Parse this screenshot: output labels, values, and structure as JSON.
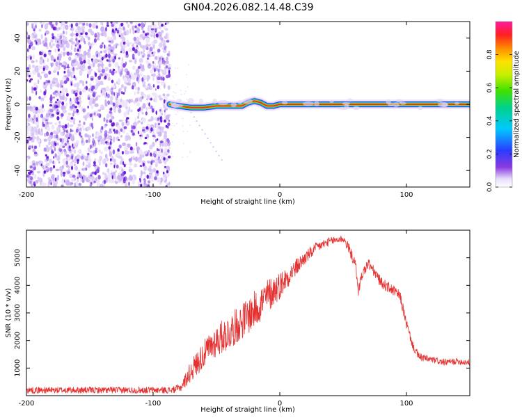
{
  "title": "GN04.2026.082.14.48.C39",
  "colors": {
    "snr_line": "#e53030",
    "ridge_core": "#e83030",
    "noise_dark": "#6a1fd6",
    "noise_light": "#d9c8f5"
  },
  "chart_data": [
    {
      "type": "heatmap",
      "name": "spectrogram",
      "xlabel": "Height of straight line (km)",
      "ylabel": "Frequency (Hz)",
      "xlim": [
        -200,
        150
      ],
      "ylim": [
        -50,
        50
      ],
      "xticks": [
        -200,
        -100,
        0,
        100
      ],
      "yticks": [
        -40,
        -20,
        0,
        20,
        40
      ],
      "noise_region_x": [
        -200,
        -87
      ],
      "ridge": [
        {
          "x": -87,
          "y": 0
        },
        {
          "x": -80,
          "y": -1
        },
        {
          "x": -70,
          "y": -2
        },
        {
          "x": -60,
          "y": -2
        },
        {
          "x": -50,
          "y": -1
        },
        {
          "x": -30,
          "y": -1
        },
        {
          "x": -25,
          "y": 1
        },
        {
          "x": -20,
          "y": 2
        },
        {
          "x": -15,
          "y": 1
        },
        {
          "x": -10,
          "y": -1
        },
        {
          "x": -5,
          "y": -1
        },
        {
          "x": 0,
          "y": 0
        },
        {
          "x": 150,
          "y": 0
        }
      ],
      "colorbar": {
        "label": "Normalized spectral amplitude",
        "range": [
          0,
          1
        ],
        "ticks": [
          "0.0",
          "0.2",
          "0.4",
          "0.6",
          "0.8"
        ]
      }
    },
    {
      "type": "line",
      "name": "snr",
      "xlabel": "Height of straight line (km)",
      "ylabel": "SNR (10 * v/v)",
      "xlim": [
        -200,
        150
      ],
      "ylim": [
        0,
        6000
      ],
      "xticks": [
        -200,
        -100,
        0,
        100
      ],
      "yticks": [
        1000,
        2000,
        3000,
        4000,
        5000
      ],
      "series": [
        {
          "name": "SNR",
          "x": [
            -200,
            -180,
            -160,
            -140,
            -120,
            -100,
            -85,
            -78,
            -70,
            -60,
            -50,
            -40,
            -30,
            -20,
            -10,
            0,
            10,
            20,
            30,
            40,
            50,
            55,
            60,
            62,
            65,
            70,
            80,
            90,
            95,
            100,
            105,
            110,
            120,
            130,
            140,
            150
          ],
          "values": [
            200,
            200,
            200,
            200,
            200,
            200,
            200,
            300,
            900,
            1500,
            2000,
            2300,
            2700,
            3100,
            3600,
            4000,
            4500,
            5000,
            5400,
            5600,
            5700,
            5300,
            4700,
            3800,
            4400,
            4800,
            4100,
            3800,
            3600,
            2600,
            1800,
            1400,
            1300,
            1200,
            1250,
            1200
          ],
          "noise_amplitude": [
            120,
            120,
            120,
            120,
            120,
            120,
            120,
            150,
            400,
            500,
            600,
            650,
            650,
            700,
            650,
            500,
            350,
            250,
            200,
            150,
            150,
            200,
            200,
            200,
            200,
            200,
            200,
            200,
            200,
            200,
            150,
            150,
            120,
            120,
            120,
            120
          ]
        }
      ]
    }
  ]
}
